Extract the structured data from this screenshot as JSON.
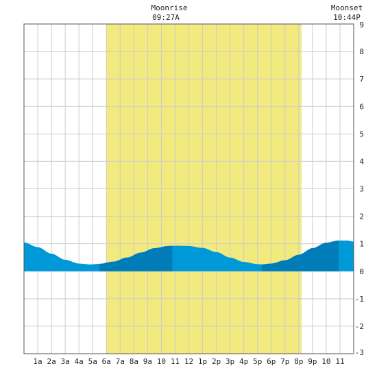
{
  "chart_data": {
    "type": "area",
    "moonrise": {
      "label": "Moonrise",
      "time": "09:27A"
    },
    "moonset": {
      "label": "Moonset",
      "time": "10:44P"
    },
    "daylight_hours": [
      6,
      20.2
    ],
    "x_ticks": [
      "1a",
      "2a",
      "3a",
      "4a",
      "5a",
      "6a",
      "7a",
      "8a",
      "9a",
      "10",
      "11",
      "12",
      "1p",
      "2p",
      "3p",
      "4p",
      "5p",
      "6p",
      "7p",
      "8p",
      "9p",
      "10",
      "11"
    ],
    "xlim": [
      0,
      24
    ],
    "ylim": [
      -3,
      9
    ],
    "y_ticks": [
      "9",
      "8",
      "7",
      "6",
      "5",
      "4",
      "3",
      "2",
      "1",
      "0",
      "-1",
      "-2",
      "-3"
    ],
    "grid": true,
    "colors": {
      "daylight": "#f2e97f",
      "tide": "#0099d8",
      "tide_dark": "#007db8",
      "grid": "#cccccc",
      "border": "#555555"
    },
    "tide_series": {
      "x": [
        0,
        1,
        2,
        3,
        4,
        4.8,
        5.5,
        6.5,
        7.5,
        8.5,
        9.5,
        10.5,
        11.2,
        12,
        13,
        14,
        15,
        16,
        17,
        17.3,
        18,
        19,
        20,
        21,
        22,
        22.9,
        23.5,
        24
      ],
      "y": [
        1.05,
        0.88,
        0.64,
        0.42,
        0.28,
        0.25,
        0.27,
        0.35,
        0.5,
        0.68,
        0.84,
        0.92,
        0.93,
        0.92,
        0.85,
        0.7,
        0.5,
        0.34,
        0.26,
        0.25,
        0.28,
        0.4,
        0.6,
        0.84,
        1.04,
        1.12,
        1.12,
        1.08
      ]
    },
    "dark_bands": [
      [
        5.5,
        10.8
      ],
      [
        17.3,
        22.9
      ]
    ]
  }
}
